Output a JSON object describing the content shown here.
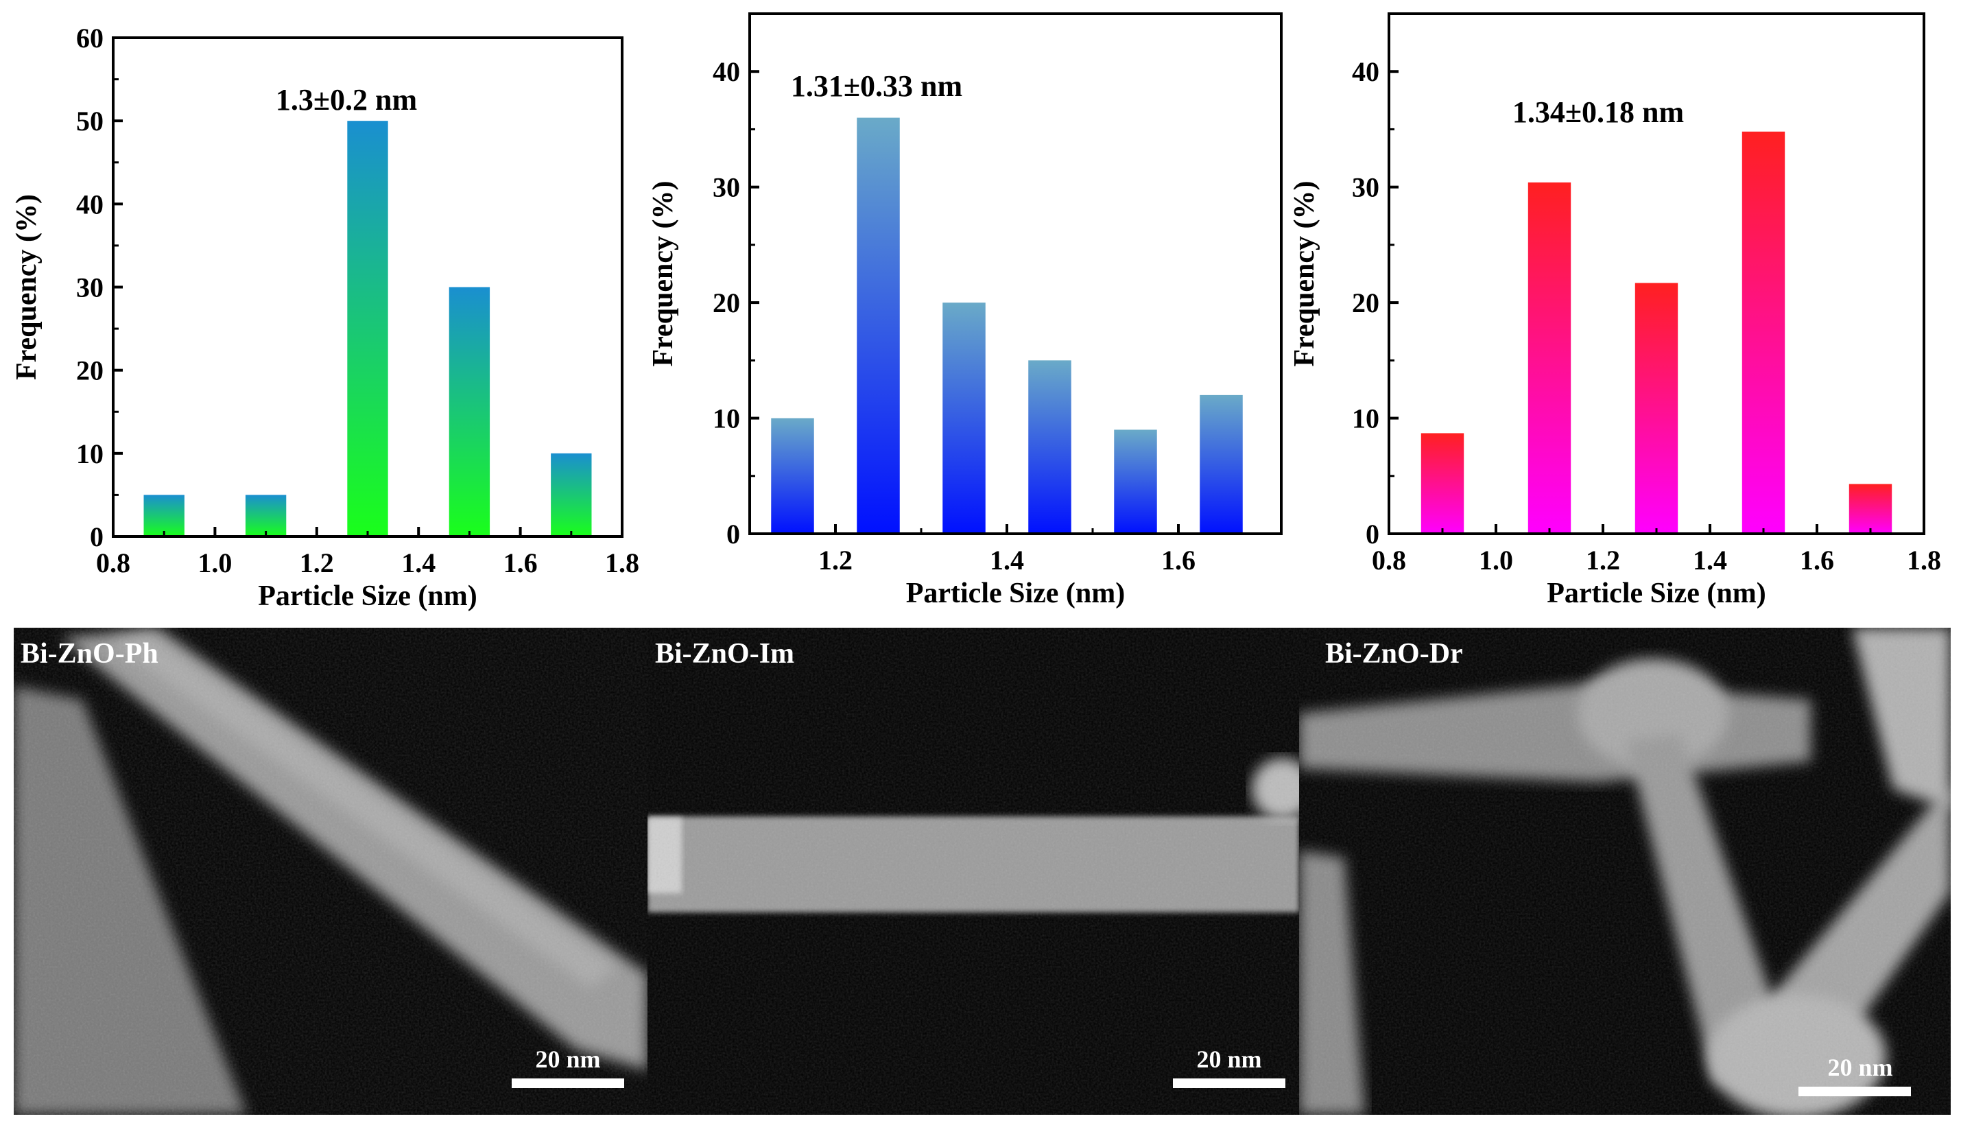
{
  "chart_data": [
    {
      "type": "bar",
      "title": "",
      "annotation": "1.3±0.2 nm",
      "xlabel": "Particle Size (nm)",
      "ylabel": "Frequency (%)",
      "xlim": [
        0.8,
        1.8
      ],
      "ylim": [
        0,
        60
      ],
      "xticks": [
        "0.8",
        "1.0",
        "1.2",
        "1.4",
        "1.6",
        "1.8"
      ],
      "yticks": [
        "0",
        "10",
        "20",
        "30",
        "40",
        "50",
        "60"
      ],
      "bar_width": 0.08,
      "x": [
        0.9,
        1.1,
        1.3,
        1.5,
        1.7
      ],
      "values": [
        5,
        5,
        50,
        30,
        10
      ],
      "gradient": [
        "#1a8fd0",
        "#1aff1a"
      ]
    },
    {
      "type": "bar",
      "title": "",
      "annotation": "1.31±0.33 nm",
      "xlabel": "Particle Size (nm)",
      "ylabel": "Frequency (%)",
      "xlim": [
        1.1,
        1.72
      ],
      "ylim": [
        0,
        45
      ],
      "xticks": [
        "1.2",
        "1.4",
        "1.6"
      ],
      "yticks": [
        "0",
        "10",
        "20",
        "30",
        "40"
      ],
      "bar_width": 0.05,
      "x": [
        1.15,
        1.25,
        1.35,
        1.45,
        1.55,
        1.65
      ],
      "values": [
        10,
        36,
        20,
        15,
        9,
        12
      ],
      "gradient": [
        "#6aaac8",
        "#0010ff"
      ]
    },
    {
      "type": "bar",
      "title": "",
      "annotation": "1.34±0.18 nm",
      "xlabel": "Particle Size (nm)",
      "ylabel": "Frequency (%)",
      "xlim": [
        0.8,
        1.8
      ],
      "ylim": [
        0,
        45
      ],
      "xticks": [
        "0.8",
        "1.0",
        "1.2",
        "1.4",
        "1.6",
        "1.8"
      ],
      "yticks": [
        "0",
        "10",
        "20",
        "30",
        "40"
      ],
      "bar_width": 0.08,
      "x": [
        0.9,
        1.1,
        1.3,
        1.5,
        1.7
      ],
      "values": [
        8.7,
        30.4,
        21.7,
        34.8,
        4.3
      ],
      "gradient": [
        "#ff2020",
        "#ff00ff"
      ]
    }
  ],
  "micrographs": [
    {
      "label": "Bi-ZnO-Ph",
      "scale": "20 nm"
    },
    {
      "label": "Bi-ZnO-Im",
      "scale": "20 nm"
    },
    {
      "label": "Bi-ZnO-Dr",
      "scale": "20 nm"
    }
  ]
}
